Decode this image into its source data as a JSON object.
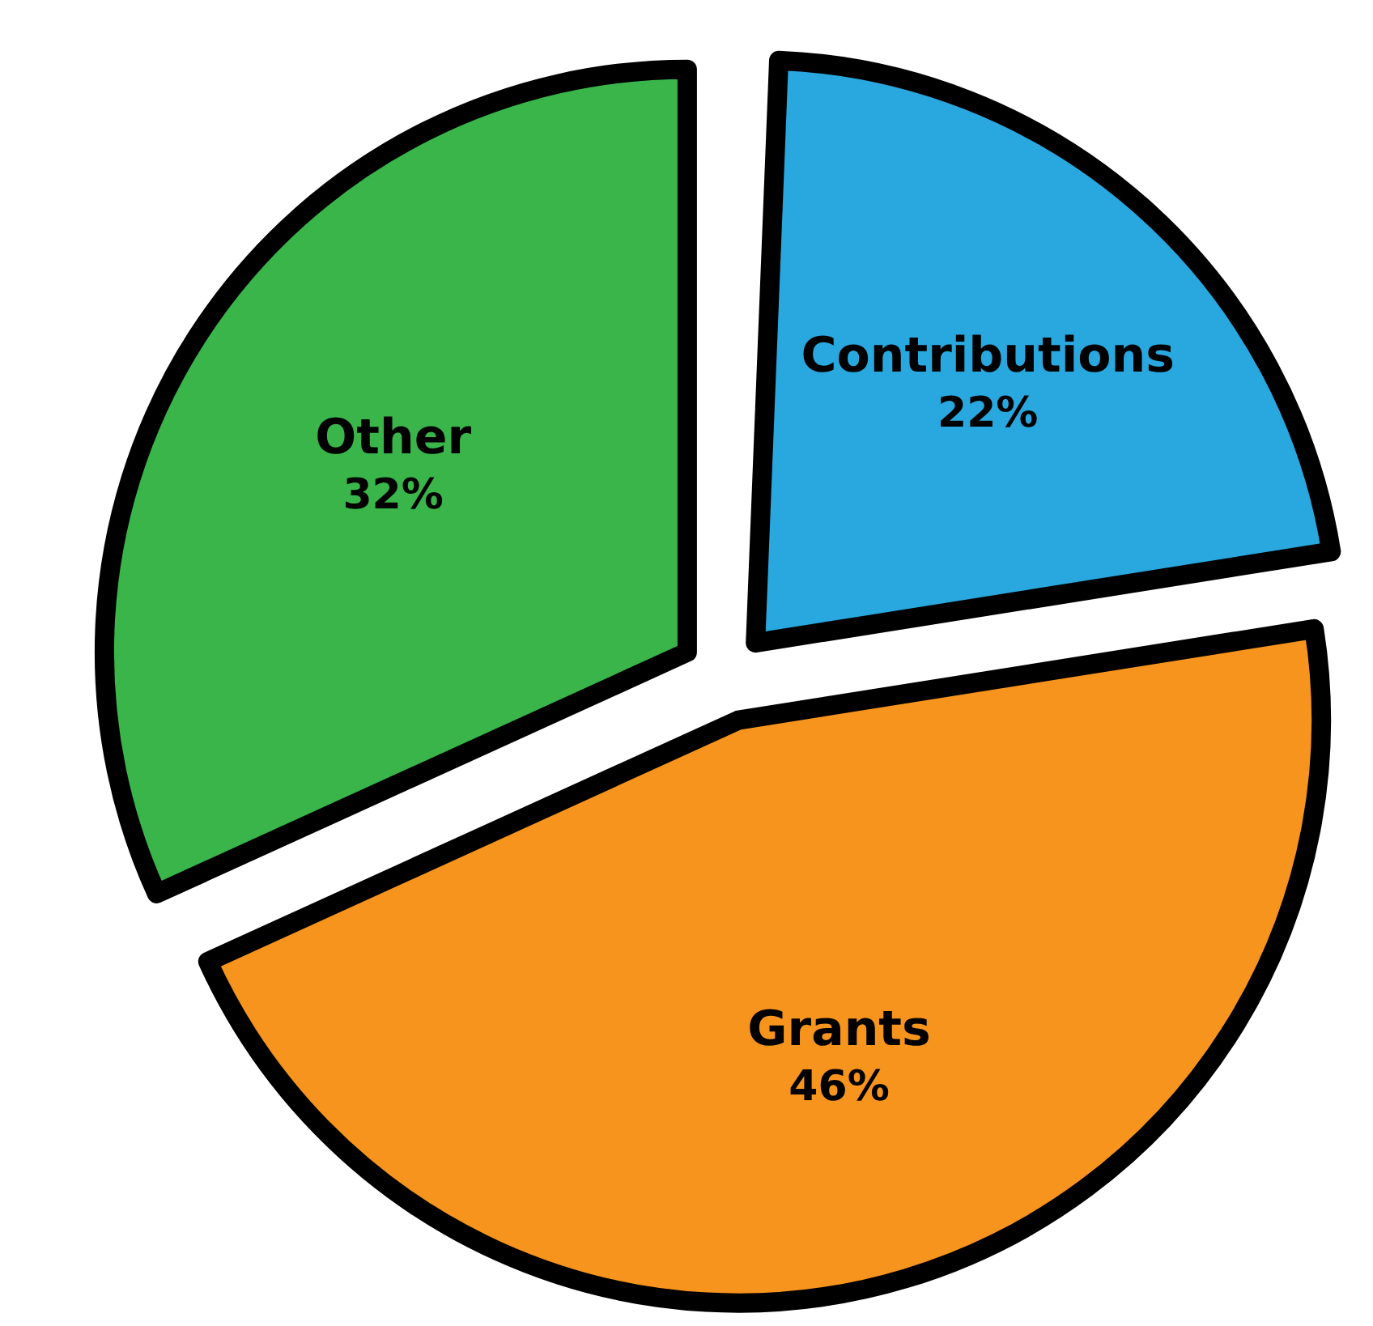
{
  "chart_data": {
    "type": "pie",
    "categories": [
      "Contributions",
      "Grants",
      "Other"
    ],
    "values": [
      22,
      46,
      32
    ],
    "value_labels": [
      "22%",
      "46%",
      "32%"
    ],
    "colors": [
      "#29a8e0",
      "#f7941d",
      "#39b54a"
    ]
  }
}
